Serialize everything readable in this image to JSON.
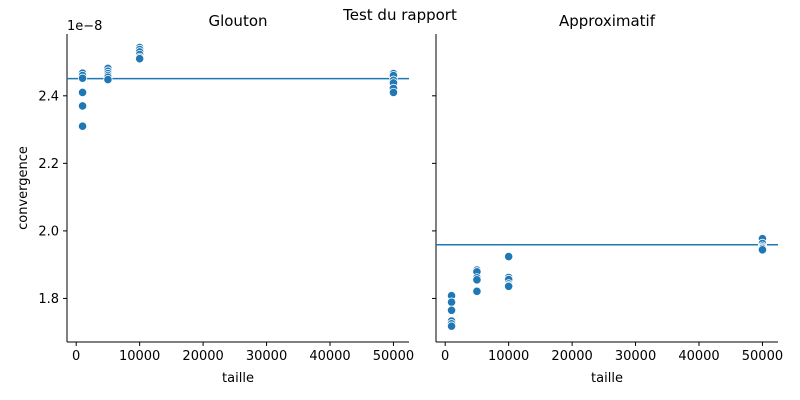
{
  "figure": {
    "suptitle": "Test du rapport",
    "y_offset_label": "1e−8",
    "accent_color": "#1f77b4"
  },
  "chart_data": [
    {
      "type": "scatter",
      "title": "Glouton",
      "xlabel": "taille",
      "ylabel": "convergence",
      "y_scale_multiplier": 1e-08,
      "xlim": [
        -1450,
        52450
      ],
      "ylim": [
        1.671,
        2.583
      ],
      "xticks": [
        0,
        10000,
        20000,
        30000,
        40000,
        50000
      ],
      "yticks": [
        1.8,
        2.0,
        2.2,
        2.4
      ],
      "hline": 2.451,
      "series": [
        {
          "color": "#1f77b4",
          "points": [
            [
              1000,
              2.467
            ],
            [
              1000,
              2.46
            ],
            [
              1000,
              2.452
            ],
            [
              1000,
              2.41
            ],
            [
              1000,
              2.37
            ],
            [
              1000,
              2.31
            ],
            [
              5000,
              2.481
            ],
            [
              5000,
              2.473
            ],
            [
              5000,
              2.466
            ],
            [
              5000,
              2.46
            ],
            [
              5000,
              2.455
            ],
            [
              5000,
              2.448
            ],
            [
              10000,
              2.543
            ],
            [
              10000,
              2.537
            ],
            [
              10000,
              2.53
            ],
            [
              10000,
              2.522
            ],
            [
              10000,
              2.514
            ],
            [
              10000,
              2.51
            ],
            [
              50000,
              2.466
            ],
            [
              50000,
              2.46
            ],
            [
              50000,
              2.446
            ],
            [
              50000,
              2.438
            ],
            [
              50000,
              2.422
            ],
            [
              50000,
              2.41
            ]
          ]
        }
      ]
    },
    {
      "type": "scatter",
      "title": "Approximatif",
      "xlabel": "taille",
      "ylabel": "",
      "y_scale_multiplier": 1e-08,
      "xlim": [
        -1450,
        52450
      ],
      "ylim": [
        1.671,
        2.583
      ],
      "xticks": [
        0,
        10000,
        20000,
        30000,
        40000,
        50000
      ],
      "yticks": [
        1.8,
        2.0,
        2.2,
        2.4
      ],
      "hline": 1.959,
      "series": [
        {
          "color": "#1f77b4",
          "points": [
            [
              1000,
              1.808
            ],
            [
              1000,
              1.789
            ],
            [
              1000,
              1.765
            ],
            [
              1000,
              1.733
            ],
            [
              1000,
              1.725
            ],
            [
              1000,
              1.718
            ],
            [
              5000,
              1.884
            ],
            [
              5000,
              1.879
            ],
            [
              5000,
              1.861
            ],
            [
              5000,
              1.855
            ],
            [
              5000,
              1.823
            ],
            [
              5000,
              1.821
            ],
            [
              10000,
              1.924
            ],
            [
              10000,
              1.862
            ],
            [
              10000,
              1.856
            ],
            [
              10000,
              1.843
            ],
            [
              10000,
              1.838
            ],
            [
              10000,
              1.836
            ],
            [
              50000,
              1.977
            ],
            [
              50000,
              1.963
            ],
            [
              50000,
              1.955
            ],
            [
              50000,
              1.951
            ],
            [
              50000,
              1.948
            ],
            [
              50000,
              1.944
            ]
          ]
        }
      ]
    }
  ]
}
